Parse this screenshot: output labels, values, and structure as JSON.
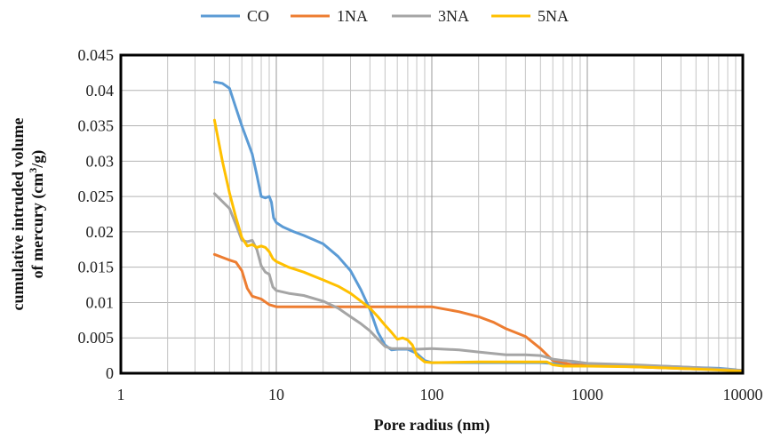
{
  "chart_data": {
    "type": "line",
    "x_scale": "log",
    "xlim": [
      1,
      10000
    ],
    "ylim": [
      0,
      0.045
    ],
    "grid": true,
    "legend_position": "top",
    "xlabel": "Pore radius  (nm)",
    "ylabel_line1": "cumulative intruded volume",
    "ylabel_line2_prefix": "of mercury  (cm",
    "ylabel_line2_sup": "3",
    "ylabel_line2_suffix": "/g)",
    "x_ticks": [
      1,
      10,
      100,
      1000,
      10000
    ],
    "x_tick_labels": [
      "1",
      "10",
      "100",
      "1000",
      "10000"
    ],
    "y_ticks": [
      0,
      0.005,
      0.01,
      0.015,
      0.02,
      0.025,
      0.03,
      0.035,
      0.04,
      0.045
    ],
    "y_tick_labels": [
      "0",
      "0.005",
      "0.01",
      "0.015",
      "0.02",
      "0.025",
      "0.03",
      "0.035",
      "0.04",
      "0.045"
    ],
    "series": [
      {
        "name": "CO",
        "color": "#5b9bd5",
        "points": [
          [
            4,
            0.0412
          ],
          [
            4.5,
            0.041
          ],
          [
            5,
            0.0403
          ],
          [
            5.5,
            0.0375
          ],
          [
            6,
            0.035
          ],
          [
            7,
            0.031
          ],
          [
            7.5,
            0.028
          ],
          [
            8,
            0.025
          ],
          [
            8.5,
            0.0248
          ],
          [
            9,
            0.025
          ],
          [
            9.3,
            0.0242
          ],
          [
            9.6,
            0.022
          ],
          [
            10,
            0.0213
          ],
          [
            11,
            0.0207
          ],
          [
            13,
            0.02
          ],
          [
            15,
            0.0195
          ],
          [
            20,
            0.0183
          ],
          [
            25,
            0.0165
          ],
          [
            30,
            0.0145
          ],
          [
            35,
            0.0118
          ],
          [
            40,
            0.009
          ],
          [
            45,
            0.0058
          ],
          [
            50,
            0.004
          ],
          [
            55,
            0.0033
          ],
          [
            60,
            0.0034
          ],
          [
            70,
            0.0034
          ],
          [
            80,
            0.0028
          ],
          [
            90,
            0.0018
          ],
          [
            100,
            0.0015
          ],
          [
            200,
            0.0015
          ],
          [
            300,
            0.0015
          ],
          [
            500,
            0.0015
          ],
          [
            700,
            0.0013
          ],
          [
            1000,
            0.0013
          ],
          [
            2000,
            0.0011
          ],
          [
            3000,
            0.001
          ],
          [
            5000,
            0.0008
          ],
          [
            7000,
            0.0007
          ],
          [
            9000,
            0.0005
          ],
          [
            10000,
            0.0001
          ]
        ]
      },
      {
        "name": "1NA",
        "color": "#ed7d31",
        "points": [
          [
            4,
            0.0168
          ],
          [
            5,
            0.016
          ],
          [
            5.5,
            0.0157
          ],
          [
            6,
            0.0145
          ],
          [
            6.5,
            0.012
          ],
          [
            7,
            0.0109
          ],
          [
            8,
            0.0105
          ],
          [
            9,
            0.0097
          ],
          [
            10,
            0.0094
          ],
          [
            20,
            0.0094
          ],
          [
            30,
            0.0094
          ],
          [
            50,
            0.0094
          ],
          [
            70,
            0.0094
          ],
          [
            100,
            0.0094
          ],
          [
            150,
            0.0087
          ],
          [
            200,
            0.008
          ],
          [
            250,
            0.0072
          ],
          [
            300,
            0.0063
          ],
          [
            400,
            0.0052
          ],
          [
            500,
            0.0035
          ],
          [
            600,
            0.0018
          ],
          [
            800,
            0.0012
          ],
          [
            1000,
            0.0011
          ],
          [
            2000,
            0.0009
          ],
          [
            5000,
            0.0006
          ],
          [
            10000,
            0.0004
          ]
        ]
      },
      {
        "name": "3NA",
        "color": "#a5a5a5",
        "points": [
          [
            4,
            0.0254
          ],
          [
            5,
            0.0233
          ],
          [
            5.5,
            0.021
          ],
          [
            6,
            0.0188
          ],
          [
            6.5,
            0.0186
          ],
          [
            7,
            0.0188
          ],
          [
            7.5,
            0.0175
          ],
          [
            8,
            0.0152
          ],
          [
            8.5,
            0.0143
          ],
          [
            9,
            0.014
          ],
          [
            9.5,
            0.0122
          ],
          [
            10,
            0.0117
          ],
          [
            12,
            0.0113
          ],
          [
            15,
            0.011
          ],
          [
            20,
            0.0102
          ],
          [
            25,
            0.0092
          ],
          [
            30,
            0.008
          ],
          [
            35,
            0.007
          ],
          [
            40,
            0.006
          ],
          [
            45,
            0.0048
          ],
          [
            50,
            0.0038
          ],
          [
            55,
            0.0035
          ],
          [
            70,
            0.0035
          ],
          [
            80,
            0.0034
          ],
          [
            100,
            0.0035
          ],
          [
            150,
            0.0033
          ],
          [
            200,
            0.003
          ],
          [
            300,
            0.0026
          ],
          [
            400,
            0.0026
          ],
          [
            500,
            0.0025
          ],
          [
            600,
            0.002
          ],
          [
            700,
            0.0018
          ],
          [
            800,
            0.0017
          ],
          [
            1000,
            0.0014
          ],
          [
            2000,
            0.0012
          ],
          [
            5000,
            0.0008
          ],
          [
            10000,
            0.0004
          ]
        ]
      },
      {
        "name": "5NA",
        "color": "#ffc000",
        "points": [
          [
            4,
            0.0358
          ],
          [
            4.5,
            0.03
          ],
          [
            5,
            0.0255
          ],
          [
            5.5,
            0.022
          ],
          [
            6,
            0.0192
          ],
          [
            6.5,
            0.018
          ],
          [
            7,
            0.0182
          ],
          [
            7.5,
            0.0178
          ],
          [
            8,
            0.018
          ],
          [
            8.5,
            0.0178
          ],
          [
            9,
            0.0172
          ],
          [
            9.5,
            0.0162
          ],
          [
            10,
            0.0158
          ],
          [
            12,
            0.015
          ],
          [
            15,
            0.0143
          ],
          [
            20,
            0.0132
          ],
          [
            25,
            0.0123
          ],
          [
            30,
            0.0113
          ],
          [
            35,
            0.0102
          ],
          [
            40,
            0.0092
          ],
          [
            45,
            0.008
          ],
          [
            50,
            0.0068
          ],
          [
            55,
            0.0058
          ],
          [
            60,
            0.0048
          ],
          [
            65,
            0.005
          ],
          [
            70,
            0.0047
          ],
          [
            75,
            0.004
          ],
          [
            80,
            0.0025
          ],
          [
            90,
            0.0016
          ],
          [
            100,
            0.0015
          ],
          [
            200,
            0.0016
          ],
          [
            300,
            0.0016
          ],
          [
            500,
            0.0016
          ],
          [
            550,
            0.0016
          ],
          [
            600,
            0.0012
          ],
          [
            700,
            0.001
          ],
          [
            1000,
            0.001
          ],
          [
            2000,
            0.0009
          ],
          [
            5000,
            0.0006
          ],
          [
            10000,
            0.0003
          ]
        ]
      }
    ]
  }
}
